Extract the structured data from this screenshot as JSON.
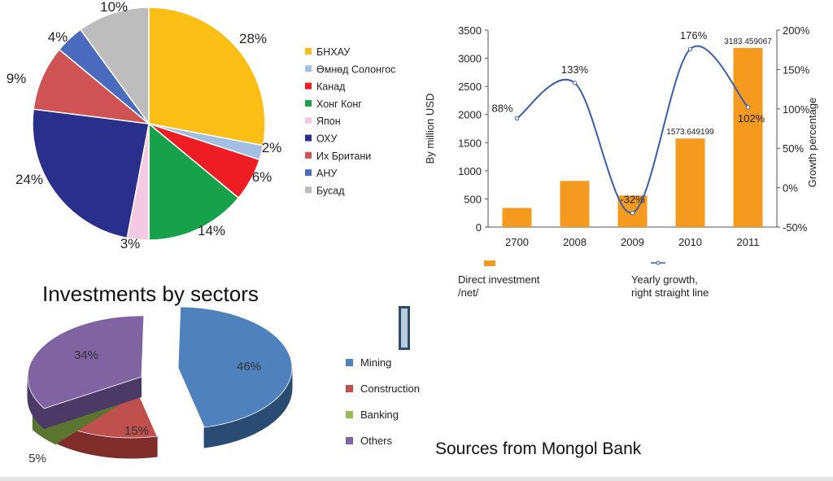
{
  "chart_data": [
    {
      "type": "pie",
      "categories": [
        "БНХАУ",
        "Өмнөд Солонгос",
        "Канад",
        "Хонг Конг",
        "Япон",
        "ОХУ",
        "Их Британи",
        "АНУ",
        "Бусад"
      ],
      "values": [
        28,
        2,
        6,
        14,
        3,
        24,
        9,
        4,
        10
      ],
      "labels": [
        "28%",
        "2%",
        "6%",
        "14%",
        "3%",
        "24%",
        "9%",
        "4%",
        "10%"
      ],
      "colors": [
        "#fbbe14",
        "#a2bfe3",
        "#ee1d23",
        "#16a14a",
        "#f5c9e2",
        "#2b2f8c",
        "#cf5255",
        "#4a6bbd",
        "#bdbdbd"
      ],
      "legend": "right"
    },
    {
      "type": "bar+line",
      "categories": [
        "2700",
        "2008",
        "2009",
        "2010",
        "2011"
      ],
      "series": [
        {
          "name": "Direct investment /net/",
          "type": "bar",
          "axis": "left",
          "values": [
            340,
            820,
            560,
            1573.649199,
            3183.459067
          ],
          "data_labels": [
            "",
            "",
            "",
            "1573.649199",
            "3183.459067"
          ],
          "color": "#f39a1f"
        },
        {
          "name": "Yearly growth, right straight line",
          "type": "line",
          "axis": "right",
          "values": [
            88,
            133,
            -32,
            176,
            102
          ],
          "data_labels": [
            "88%",
            "133%",
            "-32%",
            "176%",
            "102%"
          ],
          "color": "#3a5ea8"
        }
      ],
      "ylabel": "By million USD",
      "y2label": "Growth percentage",
      "ylim": [
        0,
        3500
      ],
      "y2lim": [
        -50,
        200
      ],
      "yticks": [
        "0",
        "500",
        "1000",
        "1500",
        "2000",
        "2500",
        "3000",
        "3500"
      ],
      "y2ticks": [
        "-50%",
        "0%",
        "50%",
        "100%",
        "150%",
        "200%"
      ],
      "legend": "bottom"
    },
    {
      "type": "pie",
      "title": "Investments by sectors",
      "categories": [
        "Mining",
        "Construction",
        "Banking",
        "Others"
      ],
      "values": [
        46,
        15,
        5,
        34
      ],
      "labels": [
        "46%",
        "15%",
        "5%",
        "34%"
      ],
      "colors": [
        "#4f81bd",
        "#c0504d",
        "#9bbb59",
        "#8064a2"
      ],
      "side_colors": [
        "#2a4c73",
        "#7e2d2b",
        "#5b7530",
        "#4b3a66"
      ],
      "legend": "right"
    }
  ],
  "source_note": "Sources from Mongol Bank"
}
